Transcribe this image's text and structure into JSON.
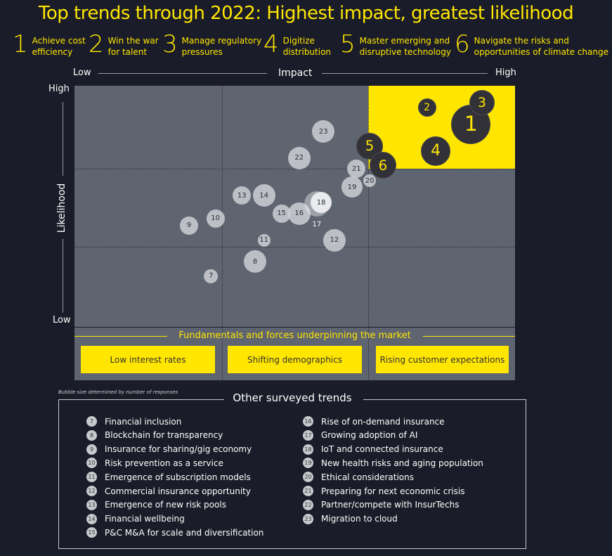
{
  "title": "Top trends through 2022: Highest impact, greatest likelihood",
  "top_trends": [
    {
      "num": "1",
      "label": "Achieve cost\nefficiency"
    },
    {
      "num": "2",
      "label": "Win the war\nfor talent"
    },
    {
      "num": "3",
      "label": "Manage regulatory\npressures"
    },
    {
      "num": "4",
      "label": "Digitize\ndistribution"
    },
    {
      "num": "5",
      "label": "Master emerging and\ndisruptive technology"
    },
    {
      "num": "6",
      "label": "Navigate the risks and\nopportunities of climate change"
    }
  ],
  "colors": {
    "background": "#1a1d29",
    "accent": "#ffe600",
    "plot": "#5f6570",
    "top_bubble": "#333138",
    "other_bubble": "#cdcfd3"
  },
  "chart_data": {
    "type": "scatter",
    "subtype": "bubble",
    "xlabel": "Impact",
    "ylabel": "Likelihood",
    "x_tick_labels": [
      "Low",
      "High"
    ],
    "y_tick_labels": [
      "Low",
      "High"
    ],
    "xlim": [
      0,
      100
    ],
    "ylim": [
      0,
      100
    ],
    "grid": "dotted 3x3",
    "highlight_quadrant": "top-right",
    "note": "Bubble size determined by number of responses",
    "points": [
      {
        "label": "1",
        "x": 90,
        "y": 84,
        "size": 27,
        "group": "top"
      },
      {
        "label": "2",
        "x": 80,
        "y": 91,
        "size": 12,
        "group": "top"
      },
      {
        "label": "3",
        "x": 92.5,
        "y": 93,
        "size": 17,
        "group": "top"
      },
      {
        "label": "4",
        "x": 82,
        "y": 73,
        "size": 20,
        "group": "top"
      },
      {
        "label": "5",
        "x": 67,
        "y": 75,
        "size": 18,
        "group": "top"
      },
      {
        "label": "6",
        "x": 70,
        "y": 67,
        "size": 18,
        "group": "top"
      },
      {
        "label": "7",
        "x": 31,
        "y": 21,
        "size": 10,
        "group": "other"
      },
      {
        "label": "8",
        "x": 41,
        "y": 27,
        "size": 16,
        "group": "other"
      },
      {
        "label": "9",
        "x": 26,
        "y": 42,
        "size": 13,
        "group": "other"
      },
      {
        "label": "10",
        "x": 32,
        "y": 45,
        "size": 13,
        "group": "other"
      },
      {
        "label": "11",
        "x": 43,
        "y": 36,
        "size": 9,
        "group": "other"
      },
      {
        "label": "12",
        "x": 59,
        "y": 36,
        "size": 16,
        "group": "other"
      },
      {
        "label": "13",
        "x": 38,
        "y": 54.5,
        "size": 13,
        "group": "other"
      },
      {
        "label": "14",
        "x": 43,
        "y": 54.5,
        "size": 16,
        "group": "other"
      },
      {
        "label": "15",
        "x": 47,
        "y": 47,
        "size": 13,
        "group": "other"
      },
      {
        "label": "16",
        "x": 51,
        "y": 47,
        "size": 16,
        "group": "other"
      },
      {
        "label": "17",
        "x": 55,
        "y": 51,
        "size": 18,
        "group": "other"
      },
      {
        "label": "18",
        "x": 56,
        "y": 51.5,
        "size": 15,
        "group": "other"
      },
      {
        "label": "19",
        "x": 63,
        "y": 58,
        "size": 15,
        "group": "other"
      },
      {
        "label": "20",
        "x": 67,
        "y": 60.5,
        "size": 9,
        "group": "other"
      },
      {
        "label": "21",
        "x": 64,
        "y": 65.5,
        "size": 13,
        "group": "other"
      },
      {
        "label": "22",
        "x": 51,
        "y": 70,
        "size": 16,
        "group": "other"
      },
      {
        "label": "23",
        "x": 56.5,
        "y": 81,
        "size": 16,
        "group": "other"
      }
    ]
  },
  "fundamentals": {
    "title": "Fundamentals and forces underpinning the market",
    "items": [
      "Low interest rates",
      "Shifting demographics",
      "Rising customer expectations"
    ]
  },
  "other_trends": {
    "title": "Other surveyed trends",
    "items": [
      {
        "num": "7",
        "label": "Financial inclusion"
      },
      {
        "num": "8",
        "label": "Blockchain for transparency"
      },
      {
        "num": "9",
        "label": "Insurance for sharing/gig economy"
      },
      {
        "num": "10",
        "label": "Risk prevention as a service"
      },
      {
        "num": "11",
        "label": "Emergence of subscription models"
      },
      {
        "num": "12",
        "label": "Commercial insurance opportunity"
      },
      {
        "num": "13",
        "label": "Emergence of new risk pools"
      },
      {
        "num": "14",
        "label": "Financial wellbeing"
      },
      {
        "num": "15",
        "label": "P&C M&A for scale and diversification"
      },
      {
        "num": "16",
        "label": "Rise of on-demand insurance"
      },
      {
        "num": "17",
        "label": "Growing adoption of AI"
      },
      {
        "num": "18",
        "label": "IoT and connected insurance"
      },
      {
        "num": "19",
        "label": "New health risks and aging population"
      },
      {
        "num": "20",
        "label": "Ethical considerations"
      },
      {
        "num": "21",
        "label": "Preparing for next economic crisis"
      },
      {
        "num": "22",
        "label": "Partner/compete with InsurTechs"
      },
      {
        "num": "23",
        "label": "Migration to cloud"
      }
    ]
  }
}
